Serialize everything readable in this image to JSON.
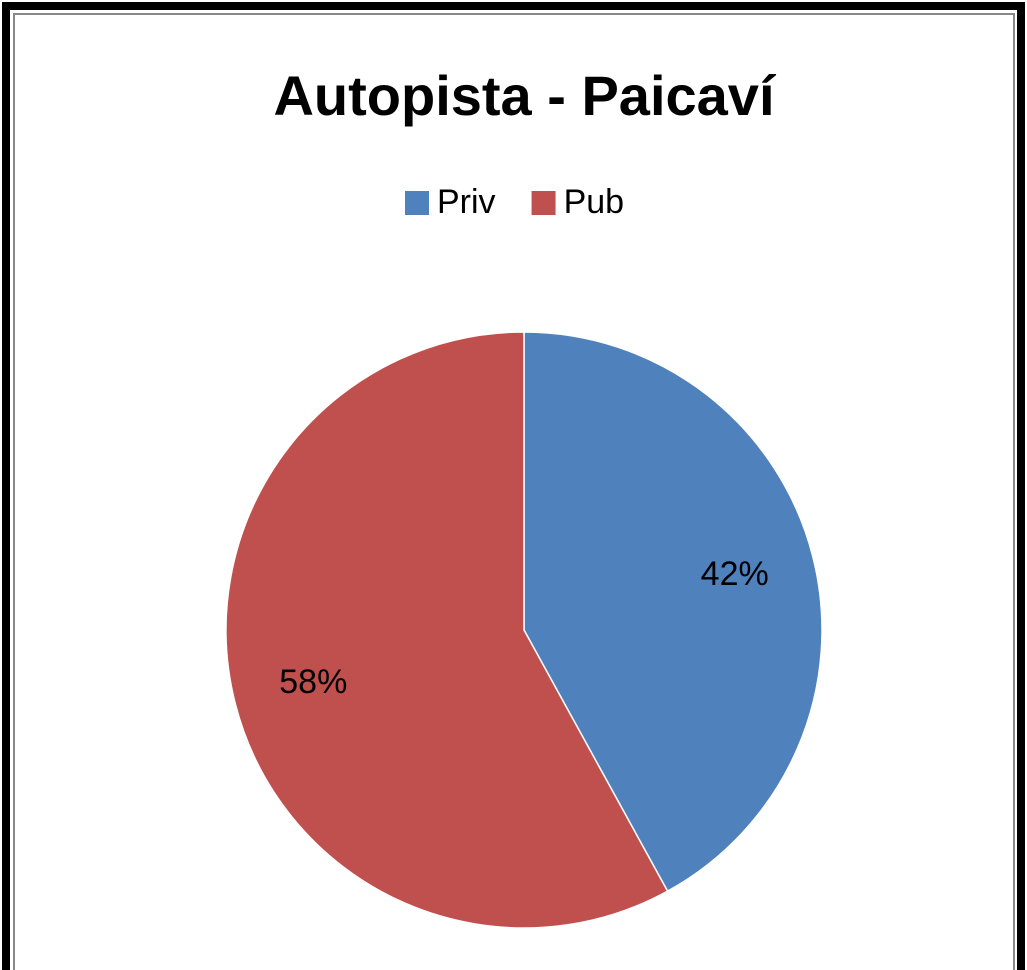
{
  "chart_data": {
    "type": "pie",
    "title": "Autopista - Paicaví",
    "categories": [
      "Priv",
      "Pub"
    ],
    "values": [
      42,
      58
    ],
    "value_labels": [
      "42%",
      "58%"
    ],
    "colors": [
      "#4f81bd",
      "#c0504d"
    ],
    "legend": "top"
  }
}
